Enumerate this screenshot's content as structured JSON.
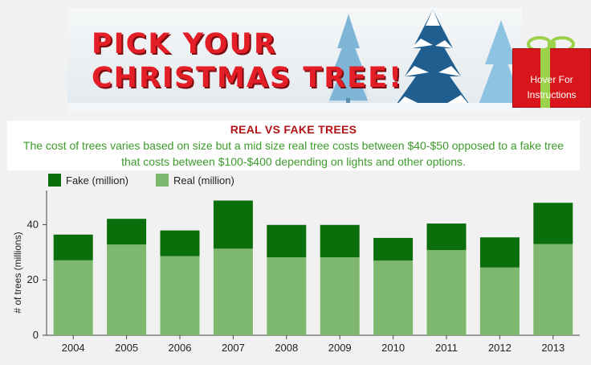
{
  "banner": {
    "title": "PICK YOUR\nCHRISTMAS TREE!",
    "gift_label": "Hover For\nInstructions",
    "gift_icon": "gift-icon"
  },
  "info": {
    "title": "REAL VS FAKE TREES",
    "description": "The cost of trees varies based on size but a mid size real tree costs between $40-$50 opposed to a fake tree that costs between $100-$400 depending on lights and other options."
  },
  "colors": {
    "fake": "#0a6e0a",
    "real": "#7db86e",
    "title_red": "#b51217",
    "desc_green": "#3d9a2c"
  },
  "chart_data": {
    "type": "bar",
    "stacked": true,
    "categories": [
      "2004",
      "2005",
      "2006",
      "2007",
      "2008",
      "2009",
      "2010",
      "2011",
      "2012",
      "2013"
    ],
    "series": [
      {
        "name": "Real (million)",
        "color": "#7db86e",
        "values": [
          27.1,
          32.8,
          28.6,
          31.3,
          28.2,
          28.2,
          27.0,
          30.8,
          24.5,
          33.0
        ]
      },
      {
        "name": "Fake (million)",
        "color": "#0a6e0a",
        "values": [
          9.3,
          9.3,
          9.3,
          17.4,
          11.7,
          11.7,
          8.2,
          9.6,
          10.9,
          14.9
        ]
      }
    ],
    "ylabel": "# of trees (millions)",
    "yticks": [
      0,
      20,
      40
    ],
    "ylim": [
      0,
      50
    ],
    "legend_position": "top-left",
    "grid": false
  }
}
